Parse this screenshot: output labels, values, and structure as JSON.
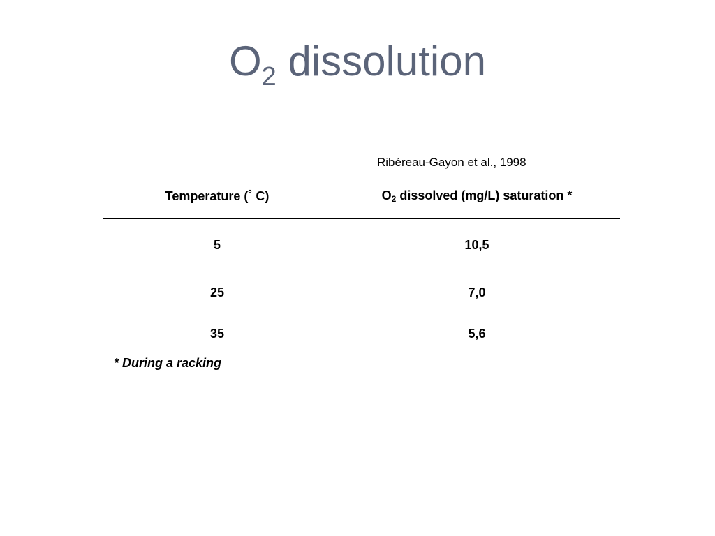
{
  "title": {
    "main": "O",
    "subscript": "2",
    "rest": " dissolution"
  },
  "source": "Ribéreau-Gayon et al., 1998",
  "table": {
    "header": [
      "Temperature (˚ C)",
      {
        "main": "O",
        "subscript": "2",
        "rest": " dissolved (mg/L) saturation *"
      }
    ],
    "rows": [
      [
        "5",
        "10,5"
      ],
      [
        "25",
        "7,0"
      ],
      [
        "35",
        "5,6"
      ]
    ]
  },
  "footnote": "* During a racking"
}
